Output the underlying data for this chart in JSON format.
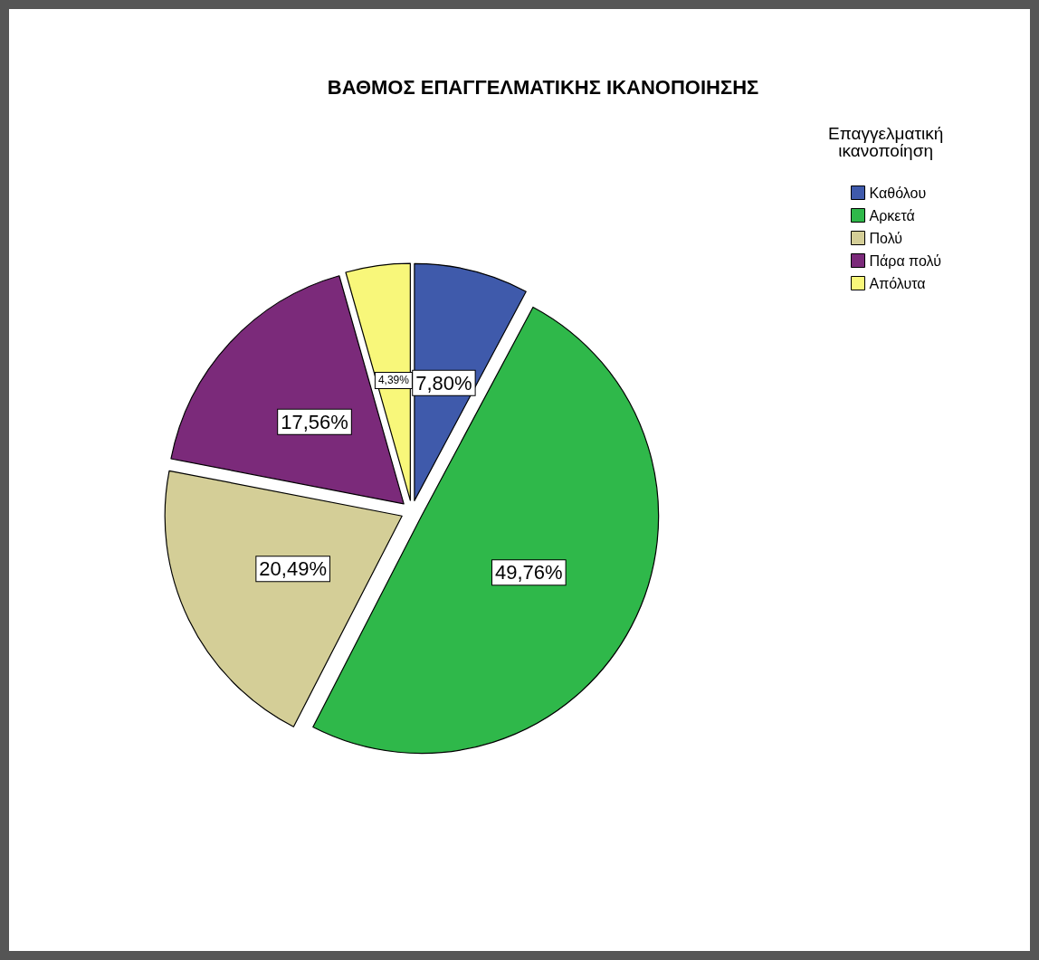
{
  "chart_data": {
    "type": "pie",
    "title": "ΒΑΘΜΟΣ ΕΠΑΓΓΕΛΜΑΤΙΚΗΣ ΙΚΑΝΟΠΟΙΗΣΗΣ",
    "legend_title": "Επαγγελματική\nικανοποίηση",
    "categories": [
      "Καθόλου",
      "Αρκετά",
      "Πολύ",
      "Πάρα πολύ",
      "Απόλυτα"
    ],
    "values": [
      7.8,
      49.76,
      20.49,
      17.56,
      4.39
    ],
    "colors": [
      "#3f5aab",
      "#2fb84a",
      "#d4ce97",
      "#7b2a7a",
      "#f8f77a"
    ],
    "value_labels": [
      "7,80%",
      "49,76%",
      "20,49%",
      "17,56%",
      "4,39%"
    ],
    "legend": "top right"
  }
}
